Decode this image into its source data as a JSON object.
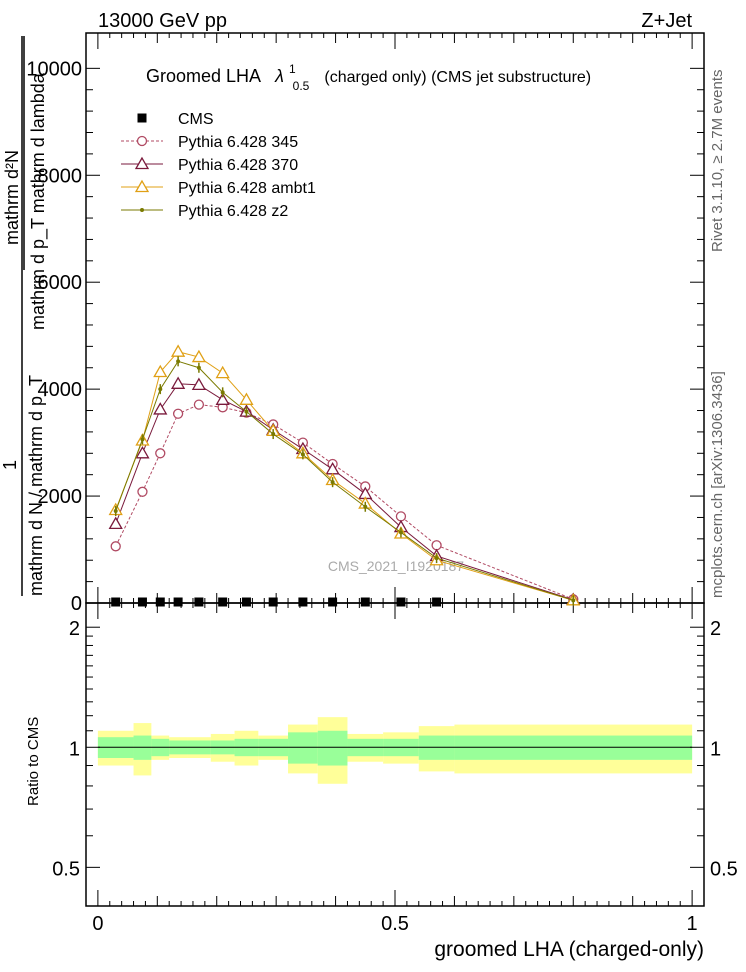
{
  "header": {
    "beam": "13000 GeV pp",
    "process": "Z+Jet"
  },
  "side_labels": {
    "rivet": "Rivet 3.1.10, ≥ 2.7M events",
    "mcplots": "mcplots.cern.ch [arXiv:1306.3436]"
  },
  "chart_data": [
    {
      "type": "line",
      "title": "Groomed LHA",
      "title_symbol": "λ",
      "title_superscript": "1",
      "title_subscript": "0.5",
      "title_suffix": "(charged only) (CMS jet substructure)",
      "watermark": "CMS_2021_I1920187",
      "ylabel_top": "mathrm d²N",
      "ylabel_mid": "mathrm d p_T mathrm d lambda",
      "ylabel_prefix": "1",
      "ylabel_bottom": "mathrm d N / mathrm d p_T",
      "xlim": [
        -0.02,
        1.02
      ],
      "ylim": [
        0,
        5000
      ],
      "y_ticks": [
        {
          "value": 0,
          "label": "0"
        },
        {
          "value": 1000,
          "label": "2000"
        },
        {
          "value": 2000,
          "label": "4000"
        },
        {
          "value": 3000,
          "label": "6000"
        },
        {
          "value": 4000,
          "label": "8000"
        },
        {
          "value": 5000,
          "label": "10000"
        }
      ],
      "legend_position": "top-left",
      "series": [
        {
          "name": "CMS",
          "color": "#000000",
          "marker": "square",
          "x": [
            0.03,
            0.075,
            0.105,
            0.135,
            0.17,
            0.21,
            0.25,
            0.295,
            0.345,
            0.395,
            0.45,
            0.51,
            0.57
          ],
          "values": [
            0,
            0,
            0,
            0,
            0,
            0,
            0,
            0,
            0,
            0,
            0,
            0,
            0
          ]
        },
        {
          "name": "Pythia 6.428 345",
          "color": "#b04a63",
          "marker": "circle",
          "dashed": true,
          "x": [
            0.03,
            0.075,
            0.105,
            0.135,
            0.17,
            0.21,
            0.25,
            0.295,
            0.345,
            0.395,
            0.45,
            0.51,
            0.57,
            0.8
          ],
          "values": [
            530,
            1040,
            1400,
            1770,
            1855,
            1830,
            1780,
            1670,
            1500,
            1300,
            1090,
            810,
            540,
            35
          ]
        },
        {
          "name": "Pythia 6.428 370",
          "color": "#7a1a3c",
          "marker": "triangle",
          "x": [
            0.03,
            0.075,
            0.105,
            0.135,
            0.17,
            0.21,
            0.25,
            0.295,
            0.345,
            0.395,
            0.45,
            0.51,
            0.57,
            0.8
          ],
          "values": [
            740,
            1400,
            1810,
            2050,
            2040,
            1900,
            1790,
            1620,
            1440,
            1250,
            1020,
            710,
            440,
            30
          ]
        },
        {
          "name": "Pythia 6.428 ambt1",
          "color": "#e0a015",
          "marker": "triangle",
          "x": [
            0.03,
            0.075,
            0.105,
            0.135,
            0.17,
            0.21,
            0.25,
            0.295,
            0.345,
            0.395,
            0.45,
            0.51,
            0.57,
            0.8
          ],
          "values": [
            870,
            1520,
            2160,
            2350,
            2300,
            2150,
            1900,
            1610,
            1400,
            1150,
            930,
            650,
            400,
            25
          ]
        },
        {
          "name": "Pythia 6.428 z2",
          "color": "#7a7a00",
          "marker": "dot",
          "x": [
            0.03,
            0.075,
            0.105,
            0.135,
            0.17,
            0.21,
            0.25,
            0.295,
            0.345,
            0.395,
            0.45,
            0.51,
            0.57,
            0.8
          ],
          "values": [
            860,
            1530,
            2000,
            2260,
            2200,
            1970,
            1790,
            1580,
            1390,
            1130,
            900,
            660,
            420,
            25
          ]
        }
      ]
    },
    {
      "type": "area",
      "ylabel": "Ratio to CMS",
      "xlabel": "groomed LHA (charged-only)",
      "xlim": [
        -0.02,
        1.02
      ],
      "ylim": [
        0.4,
        2.3
      ],
      "x_ticks": [
        {
          "value": 0,
          "label": "0"
        },
        {
          "value": 0.5,
          "label": "0.5"
        },
        {
          "value": 1,
          "label": "1"
        }
      ],
      "y_ticks": [
        {
          "value": 0.5,
          "label": "0.5"
        },
        {
          "value": 1,
          "label": "1"
        },
        {
          "value": 2,
          "label": "2"
        }
      ],
      "bin_edges": [
        0.0,
        0.06,
        0.09,
        0.12,
        0.15,
        0.19,
        0.23,
        0.27,
        0.32,
        0.37,
        0.42,
        0.48,
        0.54,
        0.6,
        1.0
      ],
      "band_inner_lo": [
        0.94,
        0.93,
        0.95,
        0.96,
        0.96,
        0.96,
        0.95,
        0.95,
        0.91,
        0.9,
        0.95,
        0.95,
        0.93,
        0.93
      ],
      "band_inner_hi": [
        1.06,
        1.07,
        1.05,
        1.04,
        1.04,
        1.04,
        1.05,
        1.05,
        1.09,
        1.1,
        1.05,
        1.05,
        1.07,
        1.07
      ],
      "band_outer_lo": [
        0.9,
        0.85,
        0.93,
        0.94,
        0.94,
        0.92,
        0.9,
        0.93,
        0.86,
        0.81,
        0.92,
        0.91,
        0.87,
        0.86
      ],
      "band_outer_hi": [
        1.1,
        1.15,
        1.07,
        1.06,
        1.06,
        1.08,
        1.1,
        1.07,
        1.14,
        1.19,
        1.08,
        1.09,
        1.13,
        1.14
      ],
      "band_colors": {
        "inner": "#99ff99",
        "outer": "#ffff99"
      }
    }
  ]
}
